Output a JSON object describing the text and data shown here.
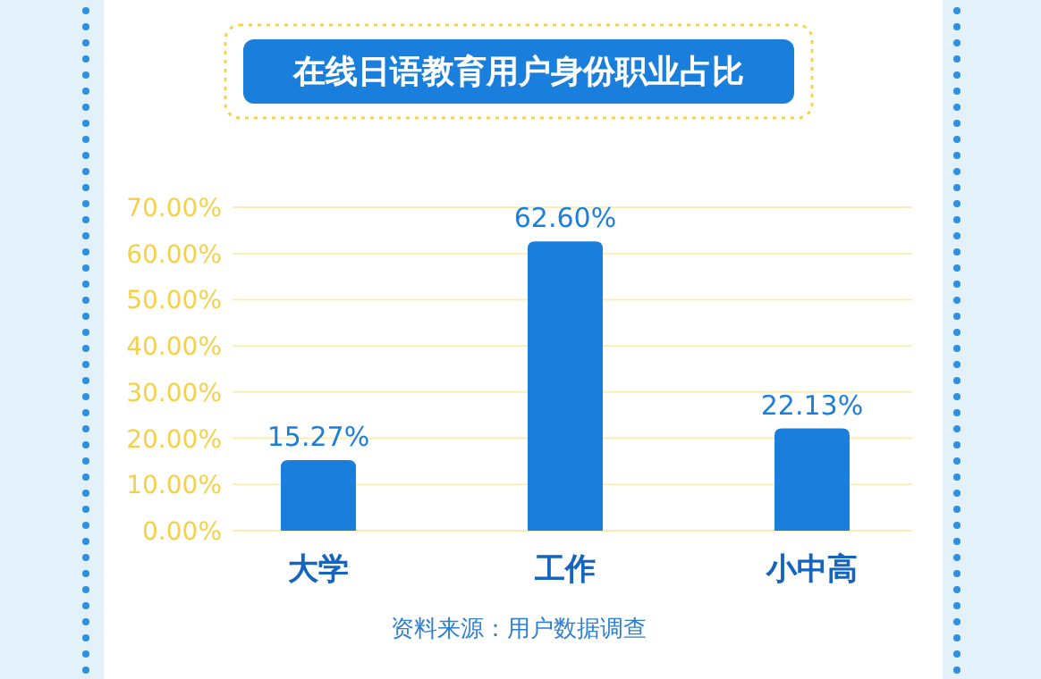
{
  "chart_data": {
    "type": "bar",
    "title": "在线日语教育用户身份职业占比",
    "categories": [
      "大学",
      "工作",
      "小中高"
    ],
    "values": [
      15.27,
      62.6,
      22.13
    ],
    "value_labels": [
      "15.27%",
      "62.60%",
      "22.13%"
    ],
    "color": "#1a7fdc",
    "ylim": [
      0,
      70
    ],
    "yticks": [
      {
        "value": 0,
        "label": "0.00%"
      },
      {
        "value": 10,
        "label": "10.00%"
      },
      {
        "value": 20,
        "label": "20.00%"
      },
      {
        "value": 30,
        "label": "30.00%"
      },
      {
        "value": 40,
        "label": "40.00%"
      },
      {
        "value": 50,
        "label": "50.00%"
      },
      {
        "value": 60,
        "label": "60.00%"
      },
      {
        "value": 70,
        "label": "70.00%"
      }
    ],
    "grid": "y",
    "annotations": [
      "资料来源：用户数据调查"
    ]
  }
}
